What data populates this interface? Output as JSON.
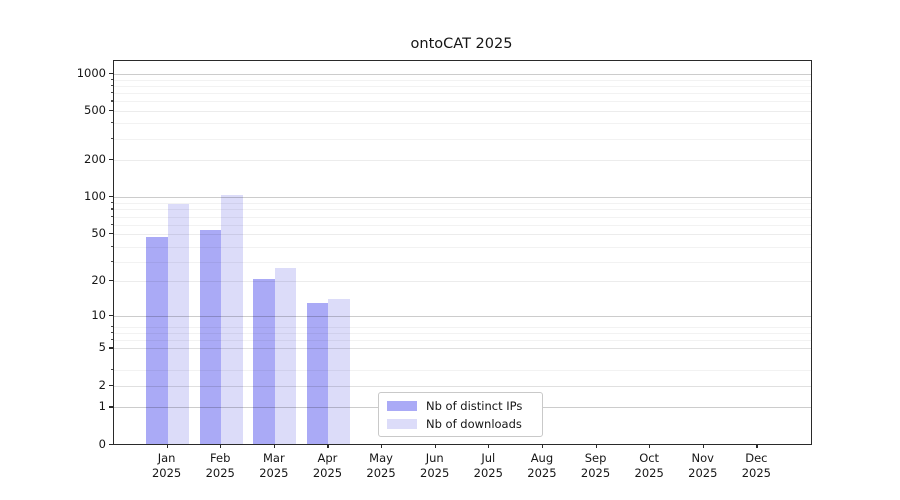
{
  "title": "ontoCAT 2025",
  "legend": {
    "items": [
      {
        "label": "Nb of distinct IPs",
        "color": "#aaaaf6"
      },
      {
        "label": "Nb of downloads",
        "color": "#dcdcf9"
      }
    ]
  },
  "chart_data": {
    "type": "bar",
    "title": "ontoCAT 2025",
    "categories": [
      "Jan 2025",
      "Feb 2025",
      "Mar 2025",
      "Apr 2025",
      "May 2025",
      "Jun 2025",
      "Jul 2025",
      "Aug 2025",
      "Sep 2025",
      "Oct 2025",
      "Nov 2025",
      "Dec 2025"
    ],
    "series": [
      {
        "name": "Nb of distinct IPs",
        "color": "#aaaaf6",
        "values": [
          47,
          54,
          21,
          13,
          0,
          0,
          0,
          0,
          0,
          0,
          0,
          0
        ]
      },
      {
        "name": "Nb of downloads",
        "color": "#dcdcf9",
        "values": [
          88,
          104,
          26,
          14,
          0,
          0,
          0,
          0,
          0,
          0,
          0,
          0
        ]
      }
    ],
    "y_scale": "log10(1+x)",
    "y_ticks": [
      0,
      1,
      2,
      5,
      10,
      20,
      50,
      100,
      200,
      500,
      1000
    ],
    "ylim": [
      0,
      1230
    ],
    "grid": true,
    "legend_position": "lower center"
  }
}
